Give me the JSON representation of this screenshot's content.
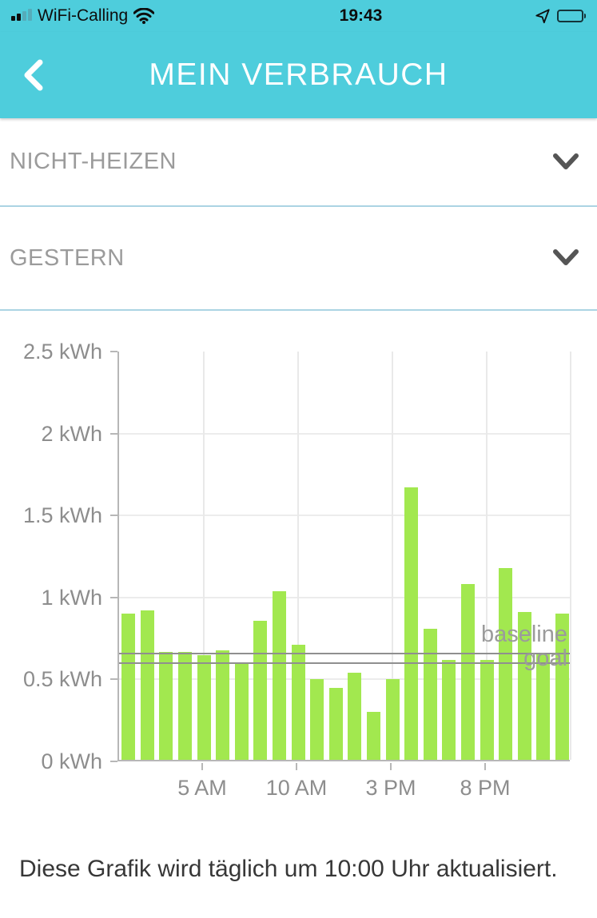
{
  "status_bar": {
    "carrier": "WiFi-Calling",
    "time": "19:43",
    "battery_percent": 65,
    "icons": [
      "cellular-signal-icon",
      "wifi-icon",
      "location-arrow-icon",
      "battery-icon"
    ]
  },
  "header": {
    "title": "MEIN VERBRAUCH"
  },
  "filters": [
    {
      "label": "NICHT-HEIZEN"
    },
    {
      "label": "GESTERN"
    }
  ],
  "chart_data": {
    "type": "bar",
    "title": "",
    "xlabel": "",
    "ylabel": "kWh",
    "ylim": [
      0,
      2.5
    ],
    "grid": true,
    "bar_color": "#a2e84f",
    "categories_hours": [
      1,
      2,
      3,
      4,
      5,
      6,
      7,
      8,
      9,
      10,
      11,
      12,
      13,
      14,
      15,
      16,
      17,
      18,
      19,
      20,
      21,
      22,
      23,
      24
    ],
    "values": [
      0.89,
      0.91,
      0.66,
      0.66,
      0.64,
      0.67,
      0.59,
      0.85,
      1.03,
      0.7,
      0.49,
      0.44,
      0.53,
      0.29,
      0.49,
      1.66,
      0.8,
      0.61,
      1.07,
      0.61,
      1.17,
      0.9,
      0.65,
      0.89
    ],
    "y_ticks": [
      {
        "label": "0 kWh",
        "value": 0
      },
      {
        "label": "0.5 kWh",
        "value": 0.5
      },
      {
        "label": "1 kWh",
        "value": 1
      },
      {
        "label": "1.5 kWh",
        "value": 1.5
      },
      {
        "label": "2 kWh",
        "value": 2
      },
      {
        "label": "2.5 kWh",
        "value": 2.5
      }
    ],
    "x_ticks": [
      {
        "label": "5 AM",
        "hour": 5
      },
      {
        "label": "10 AM",
        "hour": 10
      },
      {
        "label": "3 PM",
        "hour": 15
      },
      {
        "label": "8 PM",
        "hour": 20
      }
    ],
    "reference_lines": [
      {
        "label": "baseline",
        "value": 0.66
      },
      {
        "label": "goal",
        "value": 0.6
      }
    ],
    "legend_position": "none"
  },
  "footer": {
    "note": "Diese Grafik wird täglich um 10:00 Uhr aktualisiert."
  },
  "colors": {
    "header_teal": "#4ECDDC",
    "divider_blue": "#ABD4E3",
    "bar_green": "#a2e84f",
    "axis_gray": "#8d8d8d",
    "reference_gray": "#8f8f8f"
  }
}
